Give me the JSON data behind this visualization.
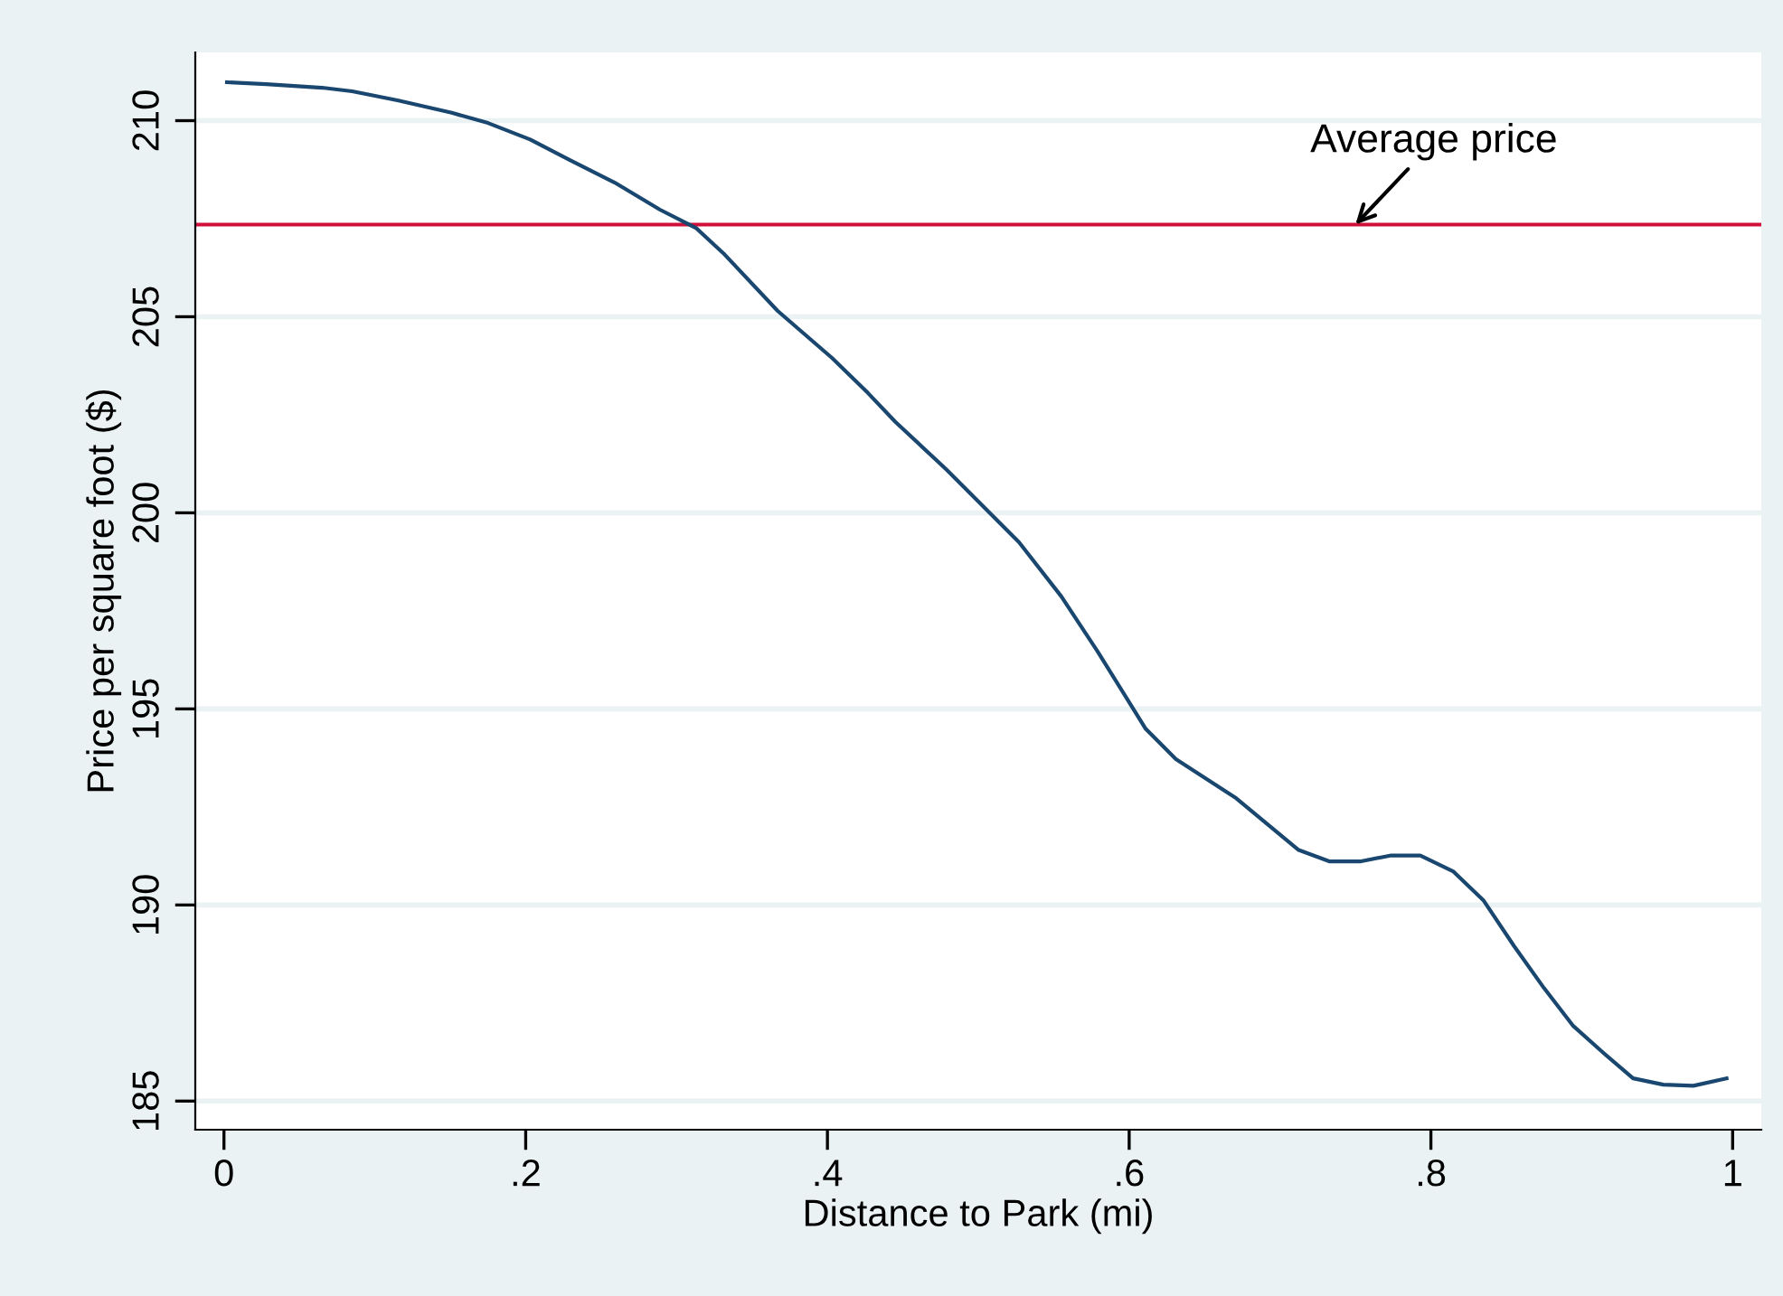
{
  "chart_data": {
    "type": "line",
    "xlabel": "Distance to Park (mi)",
    "ylabel": "Price per square foot ($)",
    "x": [
      0.002,
      0.028,
      0.065,
      0.085,
      0.115,
      0.151,
      0.175,
      0.203,
      0.229,
      0.259,
      0.289,
      0.313,
      0.331,
      0.367,
      0.403,
      0.427,
      0.445,
      0.479,
      0.527,
      0.555,
      0.579,
      0.611,
      0.631,
      0.671,
      0.712,
      0.733,
      0.753,
      0.773,
      0.793,
      0.815,
      0.835,
      0.855,
      0.875,
      0.894,
      0.914,
      0.934,
      0.954,
      0.974,
      0.996
    ],
    "series": [
      {
        "color": "#1a476f",
        "values": [
          210.98,
          210.93,
          210.84,
          210.75,
          210.52,
          210.2,
          209.94,
          209.52,
          209.0,
          208.42,
          207.73,
          207.26,
          206.62,
          205.15,
          203.95,
          203.05,
          202.32,
          201.1,
          199.25,
          197.87,
          196.47,
          194.49,
          193.72,
          192.72,
          191.41,
          191.11,
          191.11,
          191.26,
          191.26,
          190.85,
          190.11,
          188.96,
          187.88,
          186.93,
          186.24,
          185.58,
          185.42,
          185.39,
          185.58
        ]
      }
    ],
    "ref_lines": [
      {
        "axis": "y",
        "value": 207.35,
        "color": "#d0103a"
      }
    ],
    "annotations": [
      {
        "text": "Average price",
        "x": 0.75,
        "y": 207.35
      }
    ],
    "xlim": [
      -0.019,
      1.019
    ],
    "ylim": [
      184.27,
      211.74
    ],
    "xticks": [
      0,
      {
        "value": 0.2,
        "label": ".2"
      },
      {
        "value": 0.4,
        "label": ".4"
      },
      {
        "value": 0.6,
        "label": ".6"
      },
      {
        "value": 0.8,
        "label": ".8"
      },
      1
    ],
    "yticks": [
      185,
      190,
      195,
      200,
      205,
      210
    ],
    "grid": "y",
    "marker": "none",
    "line_style": "solid",
    "legend": false
  }
}
